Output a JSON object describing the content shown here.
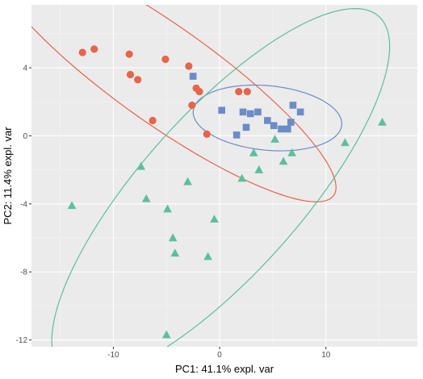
{
  "chart_data": {
    "type": "scatter",
    "title": "",
    "xlabel": "PC1: 41.1% expl. var",
    "ylabel": "PC2: 11.4% expl. var",
    "xlim": [
      -17.7,
      18.6
    ],
    "ylim": [
      -12.4,
      7.7
    ],
    "x_ticks": [
      -10,
      0,
      10
    ],
    "x_tick_labels": [
      "-10",
      "0",
      "10"
    ],
    "y_ticks": [
      4,
      0,
      -4,
      -8,
      -12
    ],
    "y_tick_labels": [
      "4",
      "0",
      "-4",
      "-8",
      "-12"
    ],
    "grid": true,
    "legend": "none",
    "panel_background": "#ebebeb",
    "grid_color": "#ffffff",
    "series": [
      {
        "marker": "circle",
        "color": "#e8644a",
        "points": [
          [
            -12.9,
            4.9
          ],
          [
            -11.8,
            5.1
          ],
          [
            -8.5,
            4.8
          ],
          [
            -5.1,
            4.5
          ],
          [
            -8.4,
            3.6
          ],
          [
            -7.7,
            3.3
          ],
          [
            -2.9,
            4.1
          ],
          [
            -2.2,
            2.8
          ],
          [
            -1.9,
            2.6
          ],
          [
            -2.6,
            1.8
          ],
          [
            -6.3,
            0.9
          ],
          [
            1.8,
            2.6
          ],
          [
            2.6,
            2.6
          ],
          [
            -1.2,
            0.1
          ]
        ]
      },
      {
        "marker": "square",
        "color": "#6b8cc8",
        "points": [
          [
            -2.5,
            3.5
          ],
          [
            0.2,
            1.5
          ],
          [
            2.2,
            1.4
          ],
          [
            2.9,
            1.3
          ],
          [
            3.6,
            1.4
          ],
          [
            7.6,
            1.4
          ],
          [
            6.9,
            1.8
          ],
          [
            4.5,
            0.9
          ],
          [
            5.1,
            0.6
          ],
          [
            5.8,
            0.4
          ],
          [
            6.7,
            0.8
          ],
          [
            2.5,
            0.5
          ],
          [
            1.6,
            0.05
          ],
          [
            6.4,
            0.4
          ]
        ]
      },
      {
        "marker": "triangle",
        "color": "#5bbf9d",
        "points": [
          [
            15.3,
            0.8
          ],
          [
            11.8,
            -0.4
          ],
          [
            5.2,
            -0.2
          ],
          [
            3.2,
            -1.0
          ],
          [
            6.8,
            -1.0
          ],
          [
            6.0,
            -1.5
          ],
          [
            -7.4,
            -1.8
          ],
          [
            2.1,
            -2.5
          ],
          [
            3.7,
            -2.0
          ],
          [
            -3.0,
            -2.7
          ],
          [
            -13.9,
            -4.1
          ],
          [
            -6.9,
            -3.7
          ],
          [
            -4.9,
            -4.3
          ],
          [
            -0.5,
            -4.9
          ],
          [
            -4.4,
            -6.0
          ],
          [
            -4.2,
            -6.9
          ],
          [
            -1.1,
            -7.1
          ],
          [
            -5.0,
            -11.7
          ]
        ]
      }
    ],
    "ellipses": [
      {
        "color": "#e8644a",
        "center": [
          -5.3,
          3.6
        ],
        "rx": 17.6,
        "ry": 3.2,
        "angle_deg": -23
      },
      {
        "color": "#6b8cc8",
        "center": [
          4.5,
          1.05
        ],
        "rx": 7.0,
        "ry": 1.9,
        "angle_deg": -3
      },
      {
        "color": "#5bbf9d",
        "center": [
          0.1,
          -3.4
        ],
        "rx": 18.4,
        "ry": 5.7,
        "angle_deg": 32
      }
    ]
  }
}
